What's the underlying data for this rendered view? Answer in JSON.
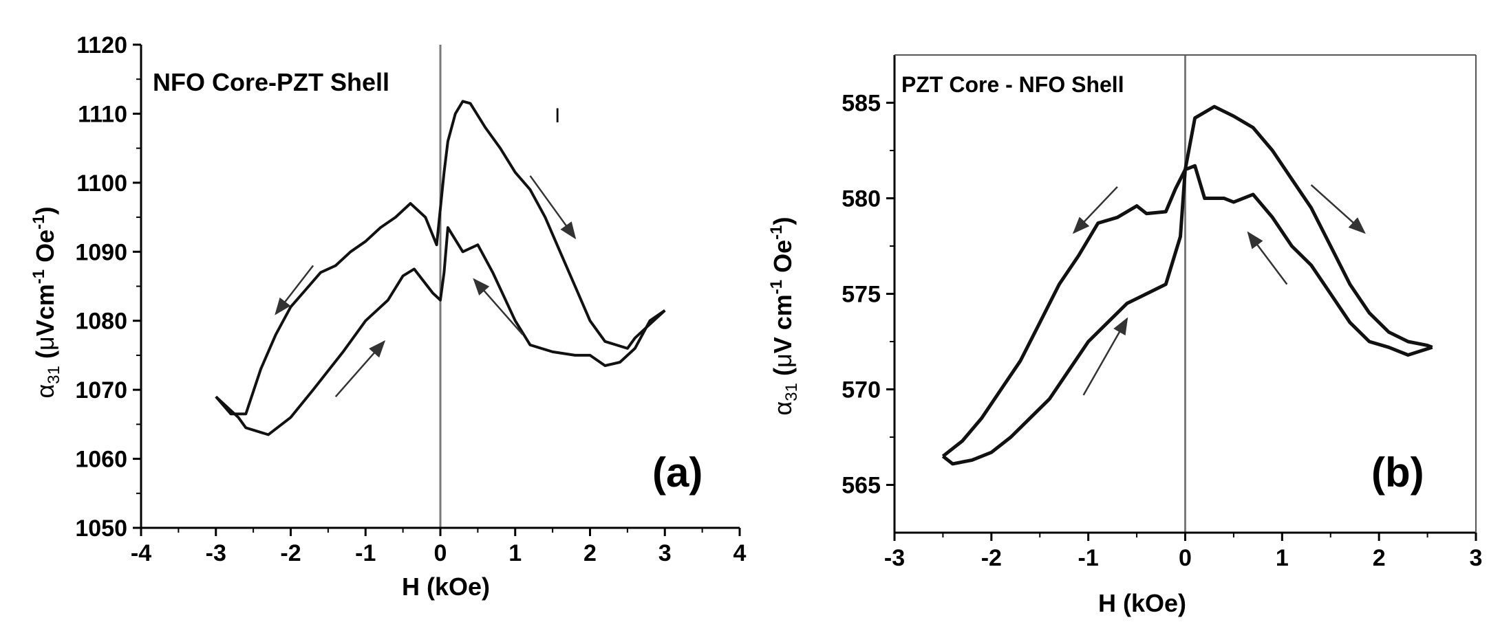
{
  "chart_data": [
    {
      "type": "line",
      "panel_label": "(a)",
      "title": "NFO Core-PZT Shell",
      "xlabel": "H (kOe)",
      "ylabel": {
        "symbol": "α",
        "subscript": "31",
        "open": " (",
        "micro": "μ",
        "unit_main": "Vcm",
        "exp1": "-1",
        "unit_end": " Oe",
        "exp2": "-1",
        "close": ")"
      },
      "xlim": [
        -4,
        4
      ],
      "ylim": [
        1050,
        1120
      ],
      "xticks": [
        -4,
        -3,
        -2,
        -1,
        0,
        1,
        2,
        3,
        4
      ],
      "yticks": [
        1050,
        1060,
        1070,
        1080,
        1090,
        1100,
        1110,
        1120
      ],
      "xtick_labels": [
        "-4",
        "-3",
        "-2",
        "-1",
        "0",
        "1",
        "2",
        "3",
        "4"
      ],
      "ytick_labels": [
        "1050",
        "1060",
        "1070",
        "1080",
        "1090",
        "1100",
        "1110",
        "1120"
      ],
      "extra_mark": "I",
      "series": [
        {
          "name": "upper branch",
          "x": [
            3.0,
            2.8,
            2.6,
            2.5,
            2.2,
            2.0,
            1.8,
            1.6,
            1.4,
            1.2,
            1.0,
            0.8,
            0.6,
            0.4,
            0.3,
            0.2,
            0.1,
            0.05,
            -0.05,
            -0.2,
            -0.4,
            -0.6,
            -0.8,
            -1.0,
            -1.2,
            -1.4,
            -1.6,
            -1.8,
            -2.0,
            -2.2,
            -2.4,
            -2.6,
            -2.8,
            -3.0
          ],
          "y": [
            1081.5,
            1079.5,
            1077.5,
            1076.0,
            1077.0,
            1080.0,
            1085.0,
            1090.0,
            1095.0,
            1099.0,
            1101.5,
            1105.0,
            1108.0,
            1111.5,
            1111.8,
            1110.0,
            1106.0,
            1101.5,
            1091.0,
            1095.0,
            1097.0,
            1095.0,
            1093.5,
            1091.5,
            1090.0,
            1088.0,
            1087.0,
            1084.5,
            1082.0,
            1078.0,
            1073.0,
            1066.5,
            1066.5,
            1069.0
          ]
        },
        {
          "name": "lower branch",
          "x": [
            -3.0,
            -2.7,
            -2.6,
            -2.3,
            -2.0,
            -1.7,
            -1.3,
            -1.0,
            -0.7,
            -0.5,
            -0.35,
            -0.1,
            0.0,
            0.05,
            0.1,
            0.3,
            0.5,
            0.7,
            1.0,
            1.2,
            1.5,
            1.8,
            2.0,
            2.2,
            2.4,
            2.6,
            2.8,
            3.0
          ],
          "y": [
            1069.0,
            1066.0,
            1064.5,
            1063.5,
            1066.0,
            1070.0,
            1075.5,
            1080.0,
            1083.0,
            1086.5,
            1087.5,
            1084.0,
            1083.0,
            1087.0,
            1093.5,
            1090.0,
            1091.0,
            1087.0,
            1080.0,
            1076.5,
            1075.5,
            1075.0,
            1075.0,
            1073.5,
            1074.0,
            1076.0,
            1080.0,
            1081.5
          ]
        }
      ],
      "arrows": [
        {
          "from": [
            1.2,
            1101
          ],
          "to": [
            1.8,
            1092
          ]
        },
        {
          "from": [
            -1.7,
            1088
          ],
          "to": [
            -2.2,
            1081
          ]
        },
        {
          "from": [
            -1.4,
            1069
          ],
          "to": [
            -0.75,
            1077
          ]
        },
        {
          "from": [
            1.1,
            1078
          ],
          "to": [
            0.45,
            1086
          ]
        }
      ]
    },
    {
      "type": "line",
      "panel_label": "(b)",
      "title": "PZT Core - NFO Shell",
      "xlabel": "H (kOe)",
      "ylabel": {
        "symbol": "α",
        "subscript": "31",
        "open": " (",
        "micro": "μ",
        "unit_main": "V cm",
        "exp1": "-1",
        "unit_end": " Oe",
        "exp2": "-1",
        "close": ")"
      },
      "xlim": [
        -3,
        3
      ],
      "ylim": [
        562.5,
        587.5
      ],
      "xticks": [
        -3,
        -2,
        -1,
        0,
        1,
        2,
        3
      ],
      "yticks": [
        565,
        570,
        575,
        580,
        585
      ],
      "xtick_labels": [
        "-3",
        "-2",
        "-1",
        "0",
        "1",
        "2",
        "3"
      ],
      "ytick_labels": [
        "565",
        "570",
        "575",
        "580",
        "585"
      ],
      "series": [
        {
          "name": "upper branch",
          "x": [
            -2.5,
            -2.3,
            -2.1,
            -1.9,
            -1.7,
            -1.5,
            -1.3,
            -1.1,
            -0.9,
            -0.7,
            -0.5,
            -0.4,
            -0.2,
            -0.1,
            0.0,
            0.1,
            0.3,
            0.5,
            0.7,
            0.9,
            1.1,
            1.3,
            1.5,
            1.7,
            1.9,
            2.1,
            2.3,
            2.5,
            2.55
          ],
          "y": [
            566.5,
            567.3,
            568.5,
            570.0,
            571.5,
            573.5,
            575.5,
            577.0,
            578.7,
            579.0,
            579.6,
            579.2,
            579.3,
            580.5,
            581.5,
            584.2,
            584.8,
            584.3,
            583.7,
            582.5,
            581.0,
            579.5,
            577.5,
            575.5,
            574.0,
            573.0,
            572.5,
            572.3,
            572.2
          ]
        },
        {
          "name": "lower branch",
          "x": [
            2.55,
            2.3,
            2.1,
            1.9,
            1.7,
            1.5,
            1.3,
            1.1,
            0.9,
            0.7,
            0.5,
            0.4,
            0.2,
            0.1,
            0.0,
            -0.05,
            -0.2,
            -0.4,
            -0.6,
            -0.8,
            -1.0,
            -1.2,
            -1.4,
            -1.6,
            -1.8,
            -2.0,
            -2.2,
            -2.4,
            -2.5
          ],
          "y": [
            572.2,
            571.8,
            572.2,
            572.5,
            573.5,
            575.0,
            576.5,
            577.5,
            579.0,
            580.2,
            579.8,
            580.0,
            580.0,
            581.7,
            581.5,
            578.0,
            575.5,
            575.0,
            574.5,
            573.5,
            572.5,
            571.0,
            569.5,
            568.5,
            567.5,
            566.7,
            566.3,
            566.1,
            566.5
          ]
        }
      ],
      "arrows": [
        {
          "from": [
            1.3,
            580.7
          ],
          "to": [
            1.85,
            578.2
          ]
        },
        {
          "from": [
            -0.7,
            580.6
          ],
          "to": [
            -1.15,
            578.2
          ]
        },
        {
          "from": [
            -1.05,
            569.7
          ],
          "to": [
            -0.6,
            573.7
          ]
        },
        {
          "from": [
            1.05,
            575.5
          ],
          "to": [
            0.65,
            578.2
          ]
        }
      ]
    }
  ]
}
